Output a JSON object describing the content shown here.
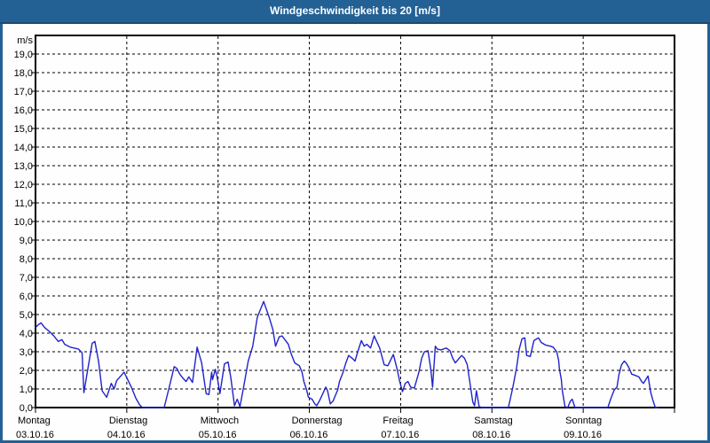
{
  "window": {
    "title": "Windgeschwindigkeit bis 20 [m/s]"
  },
  "colors": {
    "titlebar_bg": "#236195",
    "titlebar_border": "#1b4a6e",
    "frame": "#236195",
    "plot_bg": "#fdfefd",
    "axis": "#000000",
    "grid": "#000000",
    "line": "#2222cc",
    "text": "#000000"
  },
  "chart_data": {
    "type": "line",
    "title": "Windgeschwindigkeit bis 20 [m/s]",
    "unit_label": "m/s",
    "ylim": [
      0,
      20
    ],
    "ytick_step": 1.0,
    "grid": "dashed",
    "legend": "none",
    "ytick_labels": [
      "0,0",
      "1,0",
      "2,0",
      "3,0",
      "4,0",
      "5,0",
      "6,0",
      "7,0",
      "8,0",
      "9,0",
      "10,0",
      "11,0",
      "12,0",
      "13,0",
      "14,0",
      "15,0",
      "16,0",
      "17,0",
      "18,0",
      "19,0"
    ],
    "x_days": [
      {
        "name": "Montag",
        "date": "03.10.16"
      },
      {
        "name": "Dienstag",
        "date": "04.10.16"
      },
      {
        "name": "Mittwoch",
        "date": "05.10.16"
      },
      {
        "name": "Donnerstag",
        "date": "06.10.16"
      },
      {
        "name": "Freitag",
        "date": "07.10.16"
      },
      {
        "name": "Samstag",
        "date": "08.10.16"
      },
      {
        "name": "Sonntag",
        "date": "09.10.16"
      }
    ],
    "series": [
      {
        "name": "Windgeschwindigkeit",
        "color": "#2222cc",
        "x_unit": "days_from_monday",
        "y_unit": "m/s",
        "points": [
          [
            0.0,
            4.3
          ],
          [
            0.03,
            4.45
          ],
          [
            0.06,
            4.55
          ],
          [
            0.1,
            4.3
          ],
          [
            0.16,
            4.05
          ],
          [
            0.2,
            3.85
          ],
          [
            0.25,
            3.55
          ],
          [
            0.29,
            3.65
          ],
          [
            0.32,
            3.4
          ],
          [
            0.38,
            3.25
          ],
          [
            0.47,
            3.15
          ],
          [
            0.51,
            2.95
          ],
          [
            0.53,
            0.8
          ],
          [
            0.62,
            3.45
          ],
          [
            0.65,
            3.55
          ],
          [
            0.69,
            2.5
          ],
          [
            0.73,
            0.9
          ],
          [
            0.78,
            0.55
          ],
          [
            0.83,
            1.3
          ],
          [
            0.86,
            1.0
          ],
          [
            0.89,
            1.45
          ],
          [
            0.97,
            1.9
          ],
          [
            1.05,
            1.1
          ],
          [
            1.1,
            0.5
          ],
          [
            1.14,
            0.15
          ],
          [
            1.17,
            0.0
          ],
          [
            1.41,
            0.0
          ],
          [
            1.46,
            1.0
          ],
          [
            1.52,
            2.2
          ],
          [
            1.55,
            2.1
          ],
          [
            1.58,
            1.8
          ],
          [
            1.62,
            1.55
          ],
          [
            1.65,
            1.4
          ],
          [
            1.68,
            1.65
          ],
          [
            1.72,
            1.35
          ],
          [
            1.77,
            3.25
          ],
          [
            1.82,
            2.4
          ],
          [
            1.87,
            0.75
          ],
          [
            1.9,
            0.7
          ],
          [
            1.93,
            1.9
          ],
          [
            1.94,
            1.5
          ],
          [
            1.97,
            2.05
          ],
          [
            1.99,
            1.65
          ],
          [
            2.02,
            0.75
          ],
          [
            2.07,
            2.35
          ],
          [
            2.11,
            2.45
          ],
          [
            2.14,
            1.6
          ],
          [
            2.18,
            0.1
          ],
          [
            2.21,
            0.45
          ],
          [
            2.24,
            0.05
          ],
          [
            2.28,
            1.1
          ],
          [
            2.33,
            2.5
          ],
          [
            2.38,
            3.3
          ],
          [
            2.43,
            4.85
          ],
          [
            2.5,
            5.7
          ],
          [
            2.56,
            4.85
          ],
          [
            2.6,
            4.2
          ],
          [
            2.63,
            3.3
          ],
          [
            2.67,
            3.8
          ],
          [
            2.7,
            3.85
          ],
          [
            2.74,
            3.6
          ],
          [
            2.77,
            3.4
          ],
          [
            2.8,
            2.9
          ],
          [
            2.84,
            2.4
          ],
          [
            2.89,
            2.25
          ],
          [
            2.92,
            1.9
          ],
          [
            2.94,
            1.4
          ],
          [
            2.97,
            0.95
          ],
          [
            2.99,
            0.55
          ],
          [
            3.03,
            0.45
          ],
          [
            3.06,
            0.2
          ],
          [
            3.08,
            0.1
          ],
          [
            3.11,
            0.35
          ],
          [
            3.18,
            1.1
          ],
          [
            3.2,
            0.9
          ],
          [
            3.23,
            0.2
          ],
          [
            3.26,
            0.35
          ],
          [
            3.31,
            0.95
          ],
          [
            3.33,
            1.4
          ],
          [
            3.37,
            1.9
          ],
          [
            3.4,
            2.4
          ],
          [
            3.43,
            2.8
          ],
          [
            3.47,
            2.65
          ],
          [
            3.5,
            2.5
          ],
          [
            3.53,
            3.0
          ],
          [
            3.57,
            3.6
          ],
          [
            3.6,
            3.3
          ],
          [
            3.63,
            3.4
          ],
          [
            3.67,
            3.2
          ],
          [
            3.71,
            3.85
          ],
          [
            3.77,
            3.2
          ],
          [
            3.82,
            2.3
          ],
          [
            3.86,
            2.25
          ],
          [
            3.92,
            2.85
          ],
          [
            3.96,
            2.1
          ],
          [
            3.99,
            1.4
          ],
          [
            4.02,
            0.85
          ],
          [
            4.05,
            1.3
          ],
          [
            4.08,
            1.4
          ],
          [
            4.11,
            1.1
          ],
          [
            4.15,
            1.05
          ],
          [
            4.2,
            1.9
          ],
          [
            4.23,
            2.65
          ],
          [
            4.26,
            3.0
          ],
          [
            4.3,
            3.05
          ],
          [
            4.33,
            2.05
          ],
          [
            4.35,
            1.1
          ],
          [
            4.38,
            3.3
          ],
          [
            4.4,
            3.15
          ],
          [
            4.44,
            3.1
          ],
          [
            4.47,
            3.15
          ],
          [
            4.5,
            3.2
          ],
          [
            4.54,
            3.05
          ],
          [
            4.57,
            2.65
          ],
          [
            4.6,
            2.4
          ],
          [
            4.64,
            2.65
          ],
          [
            4.67,
            2.8
          ],
          [
            4.7,
            2.65
          ],
          [
            4.73,
            2.3
          ],
          [
            4.76,
            1.3
          ],
          [
            4.79,
            0.3
          ],
          [
            4.81,
            0.1
          ],
          [
            4.83,
            0.9
          ],
          [
            4.86,
            0.05
          ],
          [
            4.89,
            0.0
          ],
          [
            5.0,
            0.0
          ],
          [
            5.18,
            0.0
          ],
          [
            5.2,
            0.45
          ],
          [
            5.23,
            1.1
          ],
          [
            5.27,
            2.15
          ],
          [
            5.3,
            3.15
          ],
          [
            5.33,
            3.7
          ],
          [
            5.36,
            3.75
          ],
          [
            5.38,
            2.8
          ],
          [
            5.42,
            2.75
          ],
          [
            5.46,
            3.6
          ],
          [
            5.51,
            3.75
          ],
          [
            5.54,
            3.5
          ],
          [
            5.59,
            3.35
          ],
          [
            5.64,
            3.3
          ],
          [
            5.67,
            3.25
          ],
          [
            5.71,
            3.0
          ],
          [
            5.73,
            2.55
          ],
          [
            5.74,
            2.05
          ],
          [
            5.76,
            1.5
          ],
          [
            5.77,
            0.95
          ],
          [
            5.8,
            0.05
          ],
          [
            5.83,
            0.0
          ],
          [
            5.86,
            0.35
          ],
          [
            5.88,
            0.45
          ],
          [
            5.91,
            0.0
          ],
          [
            6.0,
            0.0
          ],
          [
            6.27,
            0.0
          ],
          [
            6.3,
            0.45
          ],
          [
            6.34,
            0.95
          ],
          [
            6.37,
            1.1
          ],
          [
            6.39,
            1.75
          ],
          [
            6.42,
            2.3
          ],
          [
            6.45,
            2.5
          ],
          [
            6.47,
            2.4
          ],
          [
            6.5,
            2.15
          ],
          [
            6.53,
            1.8
          ],
          [
            6.56,
            1.75
          ],
          [
            6.61,
            1.65
          ],
          [
            6.64,
            1.4
          ],
          [
            6.66,
            1.3
          ],
          [
            6.71,
            1.7
          ],
          [
            6.73,
            1.1
          ],
          [
            6.74,
            0.8
          ],
          [
            6.76,
            0.45
          ],
          [
            6.79,
            0.0
          ],
          [
            6.82,
            0.0
          ]
        ]
      }
    ]
  }
}
